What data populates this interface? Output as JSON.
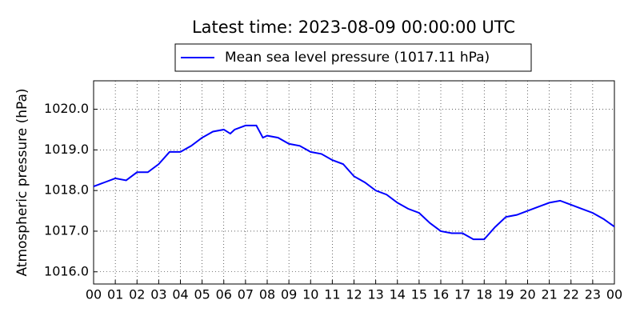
{
  "chart_data": {
    "type": "line",
    "title": "Latest time: 2023-08-09 00:00:00 UTC",
    "y_label": "Atmospheric pressure (hPa)",
    "x": [
      0,
      0.5,
      1,
      1.5,
      2,
      2.5,
      3,
      3.5,
      4,
      4.5,
      5,
      5.5,
      6,
      6.3,
      6.5,
      7,
      7.5,
      7.8,
      8,
      8.5,
      9,
      9.5,
      10,
      10.5,
      11,
      11.5,
      12,
      12.5,
      13,
      13.5,
      14,
      14.5,
      15,
      15.5,
      16,
      16.5,
      17,
      17.5,
      18,
      18.5,
      19,
      19.5,
      20,
      20.5,
      21,
      21.5,
      22,
      22.5,
      23,
      23.5,
      24
    ],
    "series": [
      {
        "name": "Mean sea level pressure (1017.11 hPa)",
        "color": "#0000ff",
        "values": [
          1018.1,
          1018.2,
          1018.3,
          1018.25,
          1018.45,
          1018.45,
          1018.65,
          1018.95,
          1018.95,
          1019.1,
          1019.3,
          1019.45,
          1019.5,
          1019.4,
          1019.5,
          1019.6,
          1019.6,
          1019.3,
          1019.35,
          1019.3,
          1019.15,
          1019.1,
          1018.95,
          1018.9,
          1018.75,
          1018.65,
          1018.35,
          1018.2,
          1018.0,
          1017.9,
          1017.7,
          1017.55,
          1017.45,
          1017.2,
          1017.0,
          1016.95,
          1016.95,
          1016.8,
          1016.8,
          1017.1,
          1017.35,
          1017.4,
          1017.5,
          1017.6,
          1017.7,
          1017.75,
          1017.65,
          1017.55,
          1017.45,
          1017.3,
          1017.11
        ]
      }
    ],
    "xlim": [
      0,
      24
    ],
    "xticks": [
      {
        "value": 0,
        "label": "00"
      },
      {
        "value": 1,
        "label": "01"
      },
      {
        "value": 2,
        "label": "02"
      },
      {
        "value": 3,
        "label": "03"
      },
      {
        "value": 4,
        "label": "04"
      },
      {
        "value": 5,
        "label": "05"
      },
      {
        "value": 6,
        "label": "06"
      },
      {
        "value": 7,
        "label": "07"
      },
      {
        "value": 8,
        "label": "08"
      },
      {
        "value": 9,
        "label": "09"
      },
      10,
      11,
      12,
      13,
      14,
      15,
      16,
      17,
      18,
      19,
      20,
      21,
      22,
      23,
      {
        "value": 24,
        "label": "00"
      }
    ],
    "ylim": [
      1015.7,
      1020.7
    ],
    "yticks": [
      {
        "value": 1016,
        "label": "1016.0"
      },
      {
        "value": 1017,
        "label": "1017.0"
      },
      {
        "value": 1018,
        "label": "1018.0"
      },
      {
        "value": 1019,
        "label": "1019.0"
      },
      {
        "value": 1020,
        "label": "1020.0"
      }
    ],
    "grid": true,
    "legend": "top"
  }
}
